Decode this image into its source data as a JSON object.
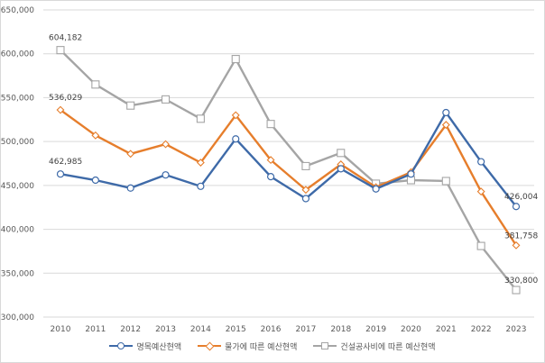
{
  "chart_data": {
    "type": "line",
    "categories": [
      "2010",
      "2011",
      "2012",
      "2013",
      "2014",
      "2015",
      "2016",
      "2017",
      "2018",
      "2019",
      "2020",
      "2021",
      "2022",
      "2023"
    ],
    "ylim": [
      300000,
      650000
    ],
    "yticks": [
      300000,
      350000,
      400000,
      450000,
      500000,
      550000,
      600000,
      650000
    ],
    "ytick_labels": [
      "300,000",
      "350,000",
      "400,000",
      "450,000",
      "500,000",
      "550,000",
      "600,000",
      "650,000"
    ],
    "grid": "horizontal",
    "legend_position": "bottom",
    "series": [
      {
        "name": "명목예산현액",
        "color": "#3e6aa8",
        "marker": "circle",
        "values": [
          462985,
          456000,
          447000,
          462000,
          449000,
          503000,
          460000,
          435000,
          469000,
          446000,
          463000,
          533000,
          477000,
          426004
        ],
        "labels": {
          "0": "462,985",
          "13": "426,004"
        }
      },
      {
        "name": "물가에 따른 예산현액",
        "color": "#e67e2c",
        "marker": "diamond",
        "values": [
          536029,
          507000,
          486000,
          497000,
          476000,
          530000,
          479000,
          445000,
          474000,
          448000,
          465000,
          519000,
          443000,
          381758
        ],
        "labels": {
          "0": "536,029",
          "13": "381,758"
        }
      },
      {
        "name": "건설공사비에 따른 예산현액",
        "color": "#a5a5a5",
        "marker": "square",
        "values": [
          604182,
          565000,
          541000,
          548000,
          526000,
          594000,
          520000,
          472000,
          487000,
          452000,
          456000,
          455000,
          381000,
          330800
        ],
        "labels": {
          "0": "604,182",
          "13": "330,800"
        }
      }
    ]
  }
}
